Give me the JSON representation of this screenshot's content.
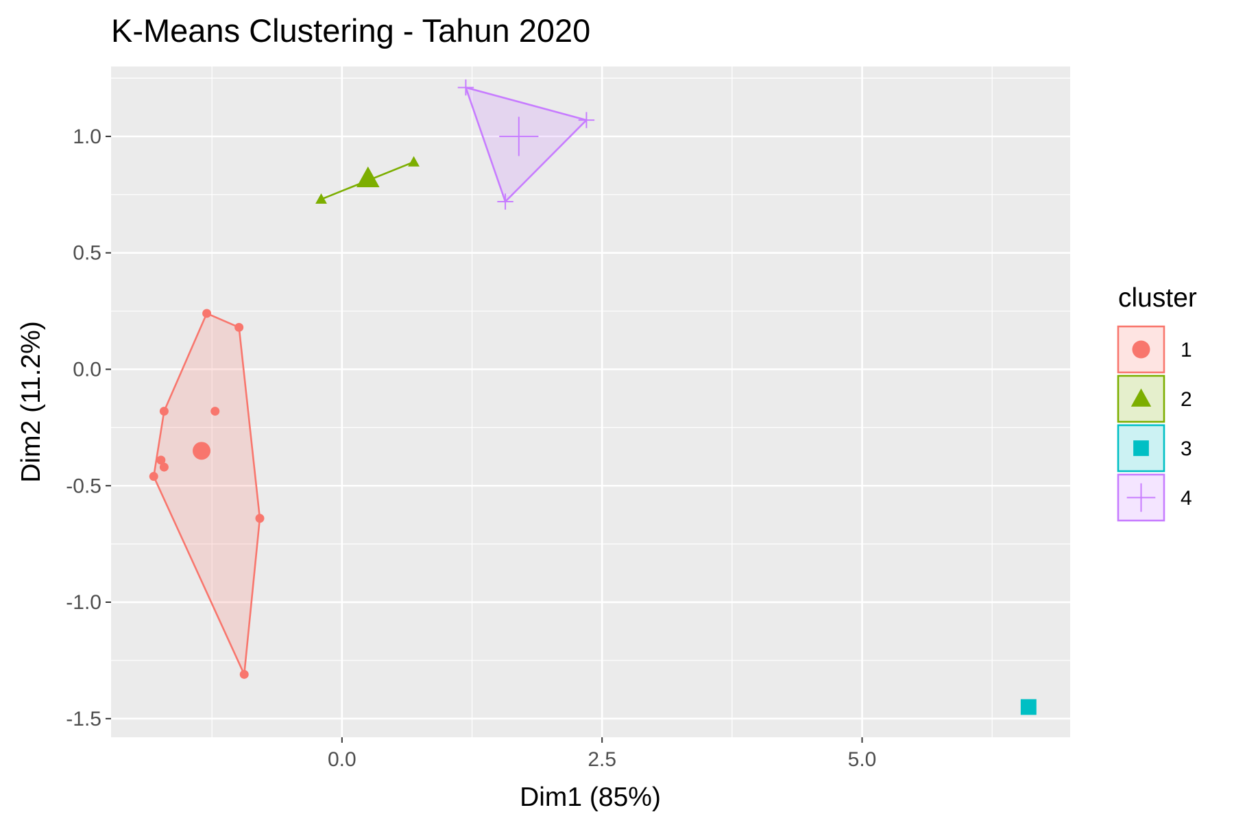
{
  "chart_data": {
    "type": "scatter",
    "title": "K-Means Clustering - Tahun 2020",
    "xlabel": "Dim1 (85%)",
    "ylabel": "Dim2 (11.2%)",
    "xlim": [
      -2.22,
      7.0
    ],
    "ylim": [
      -1.58,
      1.3
    ],
    "x_ticks": [
      {
        "value": 0.0,
        "label": "0.0"
      },
      {
        "value": 2.5,
        "label": "2.5"
      },
      {
        "value": 5.0,
        "label": "5.0"
      }
    ],
    "y_ticks": [
      {
        "value": 1.0,
        "label": "1.0"
      },
      {
        "value": 0.5,
        "label": "0.5"
      },
      {
        "value": 0.0,
        "label": "0.0"
      },
      {
        "value": -0.5,
        "label": "-0.5"
      },
      {
        "value": -1.0,
        "label": "-1.0"
      },
      {
        "value": -1.5,
        "label": "-1.5"
      }
    ],
    "grid": true,
    "legend": {
      "title": "cluster",
      "position": "right"
    },
    "clusters": [
      {
        "name": "1",
        "color": "#F8766D",
        "shape": "circle",
        "points": [
          {
            "x": -1.3,
            "y": 0.24
          },
          {
            "x": -0.99,
            "y": 0.18
          },
          {
            "x": -1.71,
            "y": -0.18
          },
          {
            "x": -1.22,
            "y": -0.18
          },
          {
            "x": -1.74,
            "y": -0.39
          },
          {
            "x": -1.71,
            "y": -0.42
          },
          {
            "x": -1.81,
            "y": -0.46
          },
          {
            "x": -0.79,
            "y": -0.64
          },
          {
            "x": -0.94,
            "y": -1.31
          }
        ],
        "hull": [
          [
            -1.3,
            0.24
          ],
          [
            -0.99,
            0.18
          ],
          [
            -0.79,
            -0.64
          ],
          [
            -0.94,
            -1.31
          ],
          [
            -1.81,
            -0.46
          ],
          [
            -1.71,
            -0.18
          ]
        ],
        "centroid": {
          "x": -1.35,
          "y": -0.35
        }
      },
      {
        "name": "2",
        "color": "#7CAE00",
        "shape": "triangle",
        "points": [
          {
            "x": -0.2,
            "y": 0.73
          },
          {
            "x": 0.69,
            "y": 0.89
          }
        ],
        "hull": [
          [
            -0.2,
            0.73
          ],
          [
            0.69,
            0.89
          ]
        ],
        "centroid": {
          "x": 0.25,
          "y": 0.82
        }
      },
      {
        "name": "3",
        "color": "#00BFC4",
        "shape": "square",
        "points": [
          {
            "x": 6.6,
            "y": -1.45
          }
        ],
        "hull": [],
        "centroid": {
          "x": 6.6,
          "y": -1.45
        }
      },
      {
        "name": "4",
        "color": "#C77CFF",
        "shape": "plus",
        "points": [
          {
            "x": 1.19,
            "y": 1.21
          },
          {
            "x": 2.35,
            "y": 1.07
          },
          {
            "x": 1.57,
            "y": 0.72
          }
        ],
        "hull": [
          [
            1.19,
            1.21
          ],
          [
            2.35,
            1.07
          ],
          [
            1.57,
            0.72
          ]
        ],
        "centroid": {
          "x": 1.7,
          "y": 1.0
        }
      }
    ]
  }
}
